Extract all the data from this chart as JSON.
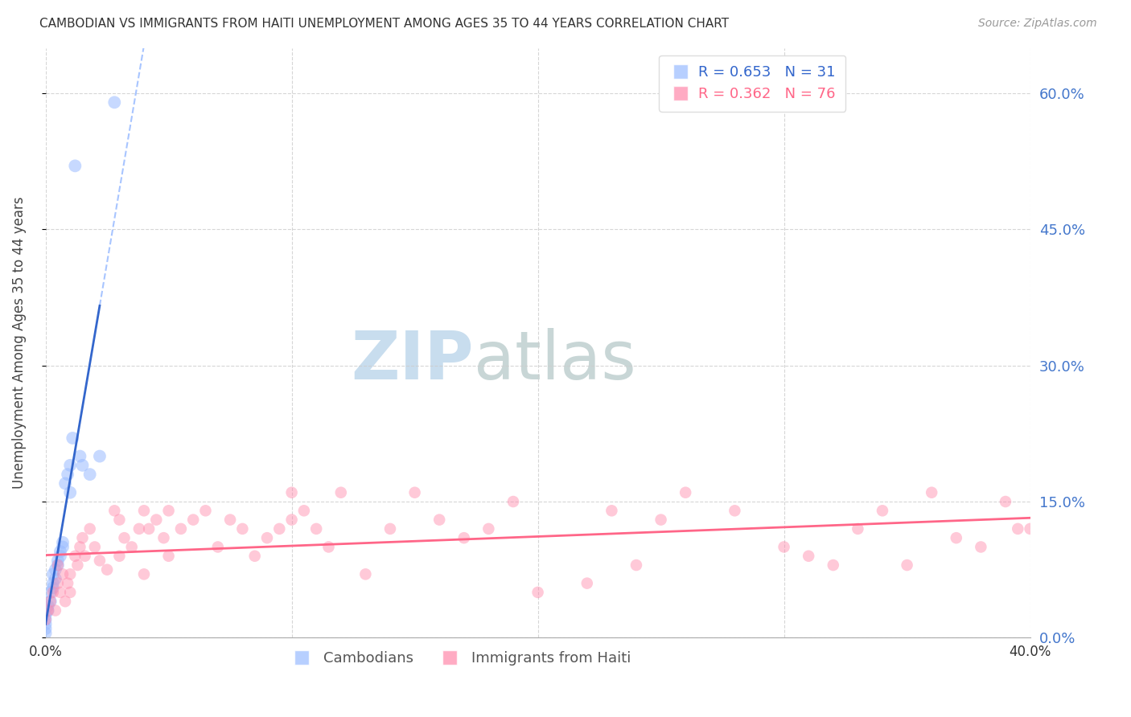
{
  "title": "CAMBODIAN VS IMMIGRANTS FROM HAITI UNEMPLOYMENT AMONG AGES 35 TO 44 YEARS CORRELATION CHART",
  "source": "Source: ZipAtlas.com",
  "ylabel": "Unemployment Among Ages 35 to 44 years",
  "legend_labels": [
    "Cambodians",
    "Immigrants from Haiti"
  ],
  "r_cambodian": 0.653,
  "n_cambodian": 31,
  "r_haiti": 0.362,
  "n_haiti": 76,
  "blue_color": "#99BBFF",
  "pink_color": "#FF88AA",
  "blue_line_solid_color": "#3366CC",
  "pink_line_color": "#FF6688",
  "xlim": [
    0.0,
    0.4
  ],
  "ylim": [
    0.0,
    0.65
  ],
  "yticks": [
    0.0,
    0.15,
    0.3,
    0.45,
    0.6
  ],
  "xticks": [
    0.0,
    0.1,
    0.2,
    0.3,
    0.4
  ],
  "cambodian_x": [
    0.0,
    0.0,
    0.0,
    0.0,
    0.0,
    0.001,
    0.001,
    0.002,
    0.002,
    0.003,
    0.003,
    0.003,
    0.004,
    0.004,
    0.005,
    0.005,
    0.006,
    0.006,
    0.007,
    0.007,
    0.008,
    0.009,
    0.01,
    0.01,
    0.011,
    0.012,
    0.014,
    0.015,
    0.018,
    0.022,
    0.028
  ],
  "cambodian_y": [
    0.005,
    0.01,
    0.015,
    0.02,
    0.025,
    0.03,
    0.035,
    0.04,
    0.05,
    0.055,
    0.06,
    0.07,
    0.065,
    0.075,
    0.08,
    0.085,
    0.09,
    0.095,
    0.1,
    0.105,
    0.17,
    0.18,
    0.16,
    0.19,
    0.22,
    0.52,
    0.2,
    0.19,
    0.18,
    0.2,
    0.59
  ],
  "haiti_x": [
    0.0,
    0.001,
    0.002,
    0.003,
    0.004,
    0.005,
    0.005,
    0.006,
    0.007,
    0.008,
    0.009,
    0.01,
    0.01,
    0.012,
    0.013,
    0.014,
    0.015,
    0.016,
    0.018,
    0.02,
    0.022,
    0.025,
    0.028,
    0.03,
    0.03,
    0.032,
    0.035,
    0.038,
    0.04,
    0.04,
    0.042,
    0.045,
    0.048,
    0.05,
    0.05,
    0.055,
    0.06,
    0.065,
    0.07,
    0.075,
    0.08,
    0.085,
    0.09,
    0.095,
    0.1,
    0.1,
    0.105,
    0.11,
    0.115,
    0.12,
    0.13,
    0.14,
    0.15,
    0.16,
    0.17,
    0.18,
    0.19,
    0.2,
    0.22,
    0.23,
    0.24,
    0.25,
    0.26,
    0.28,
    0.3,
    0.31,
    0.32,
    0.33,
    0.34,
    0.35,
    0.36,
    0.37,
    0.38,
    0.39,
    0.395,
    0.4
  ],
  "haiti_y": [
    0.02,
    0.03,
    0.04,
    0.05,
    0.03,
    0.06,
    0.08,
    0.05,
    0.07,
    0.04,
    0.06,
    0.05,
    0.07,
    0.09,
    0.08,
    0.1,
    0.11,
    0.09,
    0.12,
    0.1,
    0.085,
    0.075,
    0.14,
    0.13,
    0.09,
    0.11,
    0.1,
    0.12,
    0.07,
    0.14,
    0.12,
    0.13,
    0.11,
    0.09,
    0.14,
    0.12,
    0.13,
    0.14,
    0.1,
    0.13,
    0.12,
    0.09,
    0.11,
    0.12,
    0.16,
    0.13,
    0.14,
    0.12,
    0.1,
    0.16,
    0.07,
    0.12,
    0.16,
    0.13,
    0.11,
    0.12,
    0.15,
    0.05,
    0.06,
    0.14,
    0.08,
    0.13,
    0.16,
    0.14,
    0.1,
    0.09,
    0.08,
    0.12,
    0.14,
    0.08,
    0.16,
    0.11,
    0.1,
    0.15,
    0.12,
    0.12
  ]
}
